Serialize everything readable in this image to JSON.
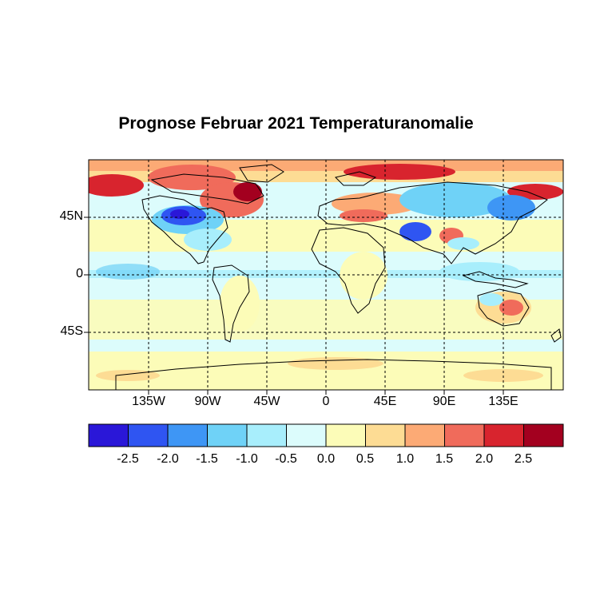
{
  "title": "Prognose Februar 2021 Temperaturanomalie",
  "map": {
    "projection": "equirectangular",
    "lon_range": [
      -180,
      180
    ],
    "lat_range": [
      -90,
      90
    ],
    "graticule": "dashed black every 45°",
    "lon_ticks": [
      {
        "value": -135,
        "label": "135W"
      },
      {
        "value": -90,
        "label": "90W"
      },
      {
        "value": -45,
        "label": "45W"
      },
      {
        "value": 0,
        "label": "0"
      },
      {
        "value": 45,
        "label": "45E"
      },
      {
        "value": 90,
        "label": "90E"
      },
      {
        "value": 135,
        "label": "135E"
      }
    ],
    "lat_ticks": [
      {
        "value": 45,
        "label": "45N"
      },
      {
        "value": 0,
        "label": "0"
      },
      {
        "value": -45,
        "label": "45S"
      }
    ]
  },
  "colorbar": {
    "colors": [
      "#2a17d8",
      "#2f55f2",
      "#3e96f5",
      "#6fd2f7",
      "#a8eefc",
      "#dcfcfc",
      "#fcfcb8",
      "#fddc94",
      "#fcaa75",
      "#f06b5b",
      "#d8242e",
      "#a3001f"
    ],
    "tick_labels": [
      "-2.5",
      "-2.0",
      "-1.5",
      "-1.0",
      "-0.5",
      "0.0",
      "0.5",
      "1.0",
      "1.5",
      "2.0",
      "2.5"
    ]
  }
}
